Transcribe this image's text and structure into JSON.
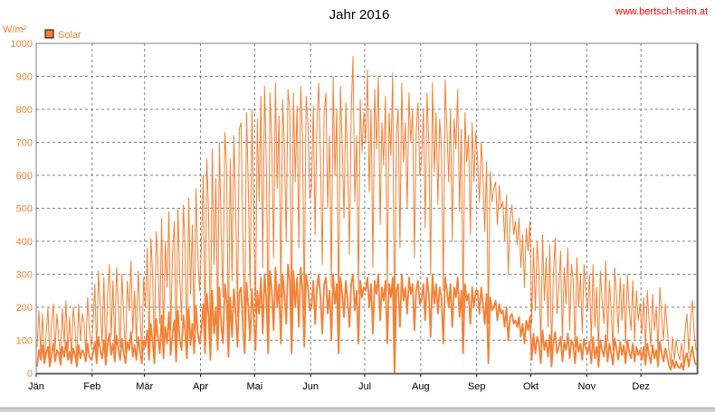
{
  "chart_data": {
    "type": "line",
    "title": "Jahr 2016",
    "source": "www.bertsch-heim.at",
    "ylabel": "W/m²",
    "ylim": [
      0,
      1000
    ],
    "yticks": [
      0,
      100,
      200,
      300,
      400,
      500,
      600,
      700,
      800,
      900,
      1000
    ],
    "grid": true,
    "legend": "top-left",
    "x_start": "2016-01-01",
    "x_end": "2016-12-31",
    "months": [
      "Jän",
      "Feb",
      "Mär",
      "Apr",
      "Mai",
      "Jun",
      "Jul",
      "Aug",
      "Sep",
      "Okt",
      "Nov",
      "Dez"
    ],
    "series_name": "Solar",
    "colors": {
      "accent": "#f48034",
      "text": "#f48034",
      "grid": "#808080",
      "link": "#ff0000"
    },
    "series": [
      {
        "name": "Solar",
        "kind": "daily_mean",
        "y_by_month": [
          [
            20,
            70,
            40,
            85,
            30,
            60,
            80,
            20,
            55,
            90,
            35,
            70,
            60,
            25,
            80,
            50,
            95,
            40,
            65,
            30,
            75,
            55,
            20,
            85,
            45,
            70,
            60,
            35,
            90,
            50,
            40
          ],
          [
            60,
            95,
            30,
            110,
            70,
            45,
            100,
            25,
            80,
            120,
            55,
            90,
            35,
            115,
            75,
            40,
            105,
            60,
            30,
            95,
            70,
            125,
            50,
            85,
            40,
            110,
            65,
            30,
            100
          ],
          [
            80,
            130,
            40,
            150,
            95,
            30,
            165,
            110,
            60,
            175,
            45,
            140,
            90,
            185,
            55,
            120,
            160,
            35,
            190,
            100,
            70,
            175,
            130,
            45,
            195,
            85,
            150,
            60,
            205,
            120,
            90
          ],
          [
            130,
            210,
            60,
            240,
            170,
            40,
            250,
            120,
            200,
            70,
            260,
            150,
            90,
            270,
            220,
            50,
            230,
            110,
            255,
            180,
            80,
            245,
            260,
            140,
            60,
            275,
            200,
            100,
            255,
            170
          ],
          [
            70,
            250,
            180,
            290,
            120,
            300,
            220,
            60,
            310,
            250,
            130,
            320,
            200,
            270,
            90,
            300,
            240,
            150,
            330,
            280,
            60,
            310,
            200,
            290,
            140,
            320,
            250,
            80,
            300,
            260,
            190
          ],
          [
            200,
            280,
            150,
            260,
            300,
            230,
            120,
            270,
            290,
            180,
            250,
            100,
            300,
            210,
            270,
            60,
            290,
            240,
            170,
            280,
            220,
            140,
            270,
            300,
            190,
            250,
            90,
            280,
            230,
            260
          ],
          [
            250,
            290,
            200,
            270,
            120,
            280,
            240,
            300,
            160,
            260,
            220,
            280,
            90,
            270,
            230,
            290,
            0,
            250,
            270,
            140,
            300,
            220,
            260,
            180,
            290,
            240,
            270,
            130,
            250,
            280,
            210
          ],
          [
            220,
            270,
            160,
            290,
            240,
            110,
            300,
            210,
            270,
            180,
            260,
            230,
            90,
            290,
            250,
            200,
            270,
            140,
            260,
            230,
            290,
            170,
            250,
            60,
            270,
            220,
            240,
            150,
            260,
            200,
            250
          ],
          [
            250,
            180,
            260,
            210,
            150,
            240,
            30,
            230,
            190,
            200,
            220,
            160,
            210,
            180,
            190,
            140,
            200,
            100,
            170,
            180,
            150,
            160,
            140,
            170,
            110,
            150,
            90,
            160,
            130,
            170
          ],
          [
            40,
            120,
            60,
            110,
            90,
            30,
            130,
            70,
            100,
            50,
            115,
            20,
            90,
            125,
            60,
            80,
            110,
            35,
            95,
            70,
            120,
            45,
            100,
            85,
            30,
            110,
            65,
            90,
            40,
            105,
            75
          ],
          [
            60,
            95,
            30,
            110,
            45,
            80,
            20,
            100,
            70,
            50,
            115,
            35,
            90,
            60,
            25,
            105,
            75,
            40,
            95,
            55,
            85,
            30,
            100,
            65,
            45,
            90,
            35,
            80,
            55,
            70
          ],
          [
            40,
            80,
            25,
            90,
            55,
            30,
            85,
            45,
            70,
            20,
            95,
            60,
            35,
            75,
            50,
            25,
            10,
            40,
            15,
            35,
            20,
            15,
            30,
            10,
            45,
            60,
            20,
            55,
            80,
            40,
            25
          ]
        ]
      },
      {
        "name": "Solar",
        "kind": "daily_max",
        "y_by_month": [
          [
            80,
            190,
            60,
            180,
            30,
            120,
            200,
            40,
            150,
            210,
            70,
            180,
            110,
            50,
            195,
            90,
            220,
            60,
            170,
            45,
            200,
            140,
            35,
            210,
            100,
            180,
            150,
            60,
            230,
            130,
            80
          ],
          [
            150,
            270,
            60,
            310,
            200,
            90,
            290,
            40,
            230,
            330,
            110,
            280,
            70,
            320,
            210,
            80,
            300,
            170,
            60,
            280,
            190,
            340,
            120,
            250,
            90,
            310,
            180,
            60,
            290
          ],
          [
            200,
            380,
            80,
            410,
            300,
            60,
            430,
            330,
            150,
            470,
            90,
            400,
            260,
            490,
            130,
            360,
            460,
            70,
            500,
            290,
            160,
            510,
            380,
            100,
            530,
            240,
            450,
            130,
            560,
            360,
            250
          ],
          [
            380,
            600,
            140,
            650,
            480,
            80,
            680,
            330,
            590,
            150,
            700,
            420,
            230,
            730,
            620,
            100,
            650,
            280,
            720,
            500,
            170,
            740,
            760,
            390,
            140,
            790,
            560,
            250,
            800,
            480
          ],
          [
            180,
            770,
            520,
            840,
            320,
            870,
            630,
            140,
            850,
            700,
            350,
            880,
            560,
            780,
            230,
            830,
            690,
            400,
            860,
            800,
            150,
            850,
            580,
            810,
            380,
            870,
            720,
            190,
            840,
            760,
            530
          ],
          [
            560,
            810,
            420,
            760,
            880,
            650,
            330,
            790,
            850,
            500,
            720,
            260,
            900,
            600,
            800,
            150,
            870,
            690,
            470,
            820,
            640,
            360,
            790,
            960,
            520,
            720,
            240,
            830,
            670,
            790
          ],
          [
            700,
            920,
            550,
            800,
            320,
            860,
            680,
            900,
            450,
            760,
            630,
            840,
            250,
            790,
            660,
            910,
            80,
            720,
            800,
            380,
            880,
            640,
            760,
            500,
            850,
            700,
            800,
            350,
            730,
            820,
            600
          ],
          [
            640,
            800,
            440,
            850,
            700,
            300,
            880,
            610,
            790,
            510,
            770,
            680,
            250,
            890,
            740,
            580,
            800,
            400,
            770,
            680,
            860,
            490,
            740,
            170,
            790,
            640,
            720,
            420,
            760,
            580,
            730
          ],
          [
            650,
            520,
            700,
            600,
            430,
            640,
            150,
            610,
            520,
            560,
            580,
            450,
            570,
            500,
            520,
            400,
            540,
            300,
            470,
            510,
            420,
            460,
            390,
            470,
            320,
            420,
            260,
            440,
            370,
            460
          ],
          [
            150,
            380,
            190,
            400,
            300,
            90,
            420,
            220,
            350,
            140,
            390,
            60,
            290,
            410,
            180,
            260,
            370,
            100,
            320,
            210,
            380,
            130,
            330,
            280,
            80,
            350,
            200,
            300,
            120,
            330,
            240
          ],
          [
            190,
            300,
            90,
            330,
            140,
            260,
            60,
            310,
            220,
            150,
            340,
            100,
            280,
            190,
            70,
            320,
            230,
            120,
            290,
            160,
            270,
            90,
            300,
            200,
            130,
            280,
            100,
            250,
            160,
            210
          ],
          [
            120,
            230,
            70,
            250,
            160,
            80,
            240,
            130,
            200,
            60,
            260,
            170,
            100,
            210,
            140,
            70,
            30,
            110,
            40,
            100,
            60,
            40,
            90,
            30,
            130,
            180,
            60,
            160,
            220,
            120,
            70
          ]
        ]
      }
    ]
  }
}
